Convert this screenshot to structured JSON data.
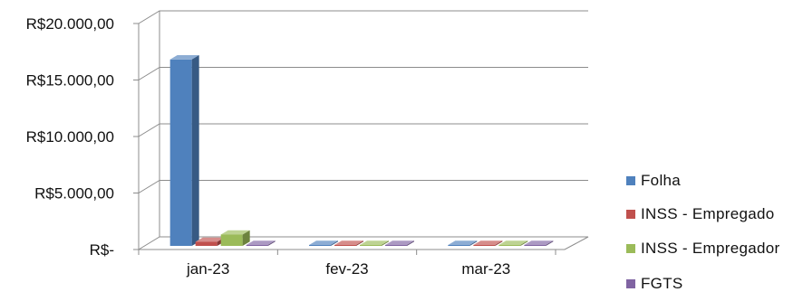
{
  "chart_data": {
    "type": "bar",
    "categories": [
      "jan-23",
      "fev-23",
      "mar-23"
    ],
    "series": [
      {
        "name": "Folha",
        "values": [
          16500,
          0,
          0
        ],
        "color": "#4F81BD"
      },
      {
        "name": "INSS - Empregado",
        "values": [
          360,
          0,
          0
        ],
        "color": "#C0504D"
      },
      {
        "name": "INSS - Empregador",
        "values": [
          1000,
          0,
          0
        ],
        "color": "#9BBB59"
      },
      {
        "name": "FGTS",
        "values": [
          0,
          0,
          0
        ],
        "color": "#8064A2"
      }
    ],
    "yticks": [
      "R$-",
      "R$5.000,00",
      "R$10.000,00",
      "R$15.000,00",
      "R$20.000,00"
    ],
    "ylim": [
      0,
      20000
    ],
    "grid": true,
    "legend_position": "right",
    "style": "3d-clustered-column"
  }
}
